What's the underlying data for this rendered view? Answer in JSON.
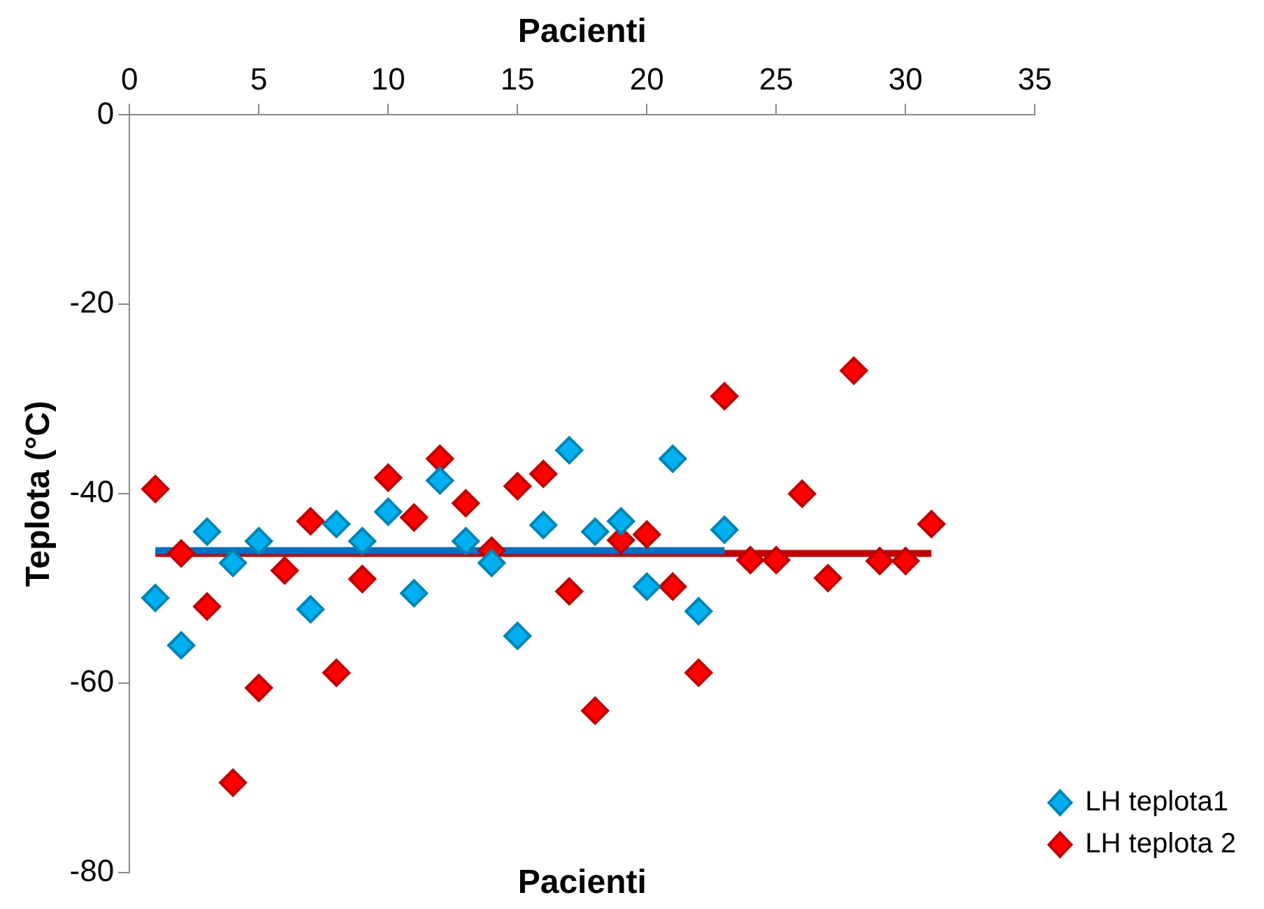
{
  "chart_data": {
    "type": "scatter",
    "xlabel": "Pacienti",
    "ylabel": "Teplota (°C)",
    "annotations": [
      "Pacienti"
    ],
    "xlim": [
      0,
      35
    ],
    "xticks": [
      0,
      5,
      10,
      15,
      20,
      25,
      30,
      35
    ],
    "ylim": [
      -80,
      0
    ],
    "yticks": [
      -80,
      -60,
      -40,
      -20,
      0
    ],
    "grid": false,
    "legend": "bottom right",
    "marker": "diamond",
    "series": [
      {
        "name": "LH teplota1",
        "color": "#00b0f0",
        "x": [
          1,
          2,
          3,
          4,
          5,
          7,
          8,
          9,
          10,
          11,
          12,
          13,
          14,
          15,
          16,
          17,
          18,
          19,
          20,
          21,
          22,
          23
        ],
        "values": [
          -51,
          -56,
          -44,
          -47.3,
          -45,
          -52.2,
          -43.2,
          -45,
          -41.9,
          -50.5,
          -38.6,
          -45,
          -47.3,
          -55,
          -43.3,
          -35.4,
          -44,
          -42.9,
          -49.8,
          -36.3,
          -52.4,
          -43.8
        ]
      },
      {
        "name": "LH teplota 2",
        "color": "#ff0000",
        "x": [
          1,
          2,
          3,
          4,
          5,
          6,
          7,
          8,
          9,
          10,
          11,
          12,
          13,
          14,
          15,
          16,
          17,
          18,
          19,
          20,
          21,
          22,
          23,
          24,
          25,
          26,
          27,
          28,
          29,
          30,
          31
        ],
        "values": [
          -39.5,
          -46.3,
          -51.9,
          -70.5,
          -60.5,
          -48.1,
          -42.9,
          -58.9,
          -49,
          -38.3,
          -42.5,
          -36.3,
          -41,
          -46,
          -39.2,
          -37.9,
          -50.3,
          -62.9,
          -44.9,
          -44.3,
          -49.8,
          -58.9,
          -29.7,
          -47,
          -47,
          -40,
          -48.9,
          -27,
          -47.1,
          -47.1,
          -43.2
        ]
      },
      {
        "type": "line",
        "marker": "none",
        "color": "#0070c0",
        "x": [
          1,
          23
        ],
        "values": [
          -46,
          -46
        ]
      },
      {
        "type": "line",
        "marker": "none",
        "color": "#c00000",
        "x": [
          1,
          31
        ],
        "values": [
          -46.3,
          -46.3
        ]
      }
    ]
  }
}
